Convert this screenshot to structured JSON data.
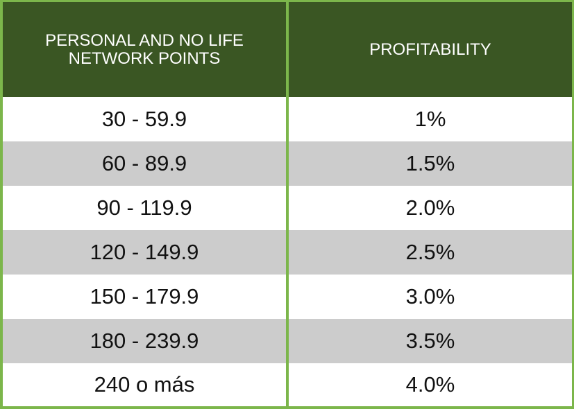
{
  "header": {
    "col1": "PERSONAL AND NO LIFE NETWORK POINTS",
    "col2": "PROFITABILITY"
  },
  "rows": [
    {
      "points": "30 - 59.9",
      "profitability": "1%"
    },
    {
      "points": "60 - 89.9",
      "profitability": "1.5%"
    },
    {
      "points": "90 - 119.9",
      "profitability": "2.0%"
    },
    {
      "points": "120 - 149.9",
      "profitability": "2.5%"
    },
    {
      "points": "150 - 179.9",
      "profitability": "3.0%"
    },
    {
      "points": "180 - 239.9",
      "profitability": "3.5%"
    },
    {
      "points": "240 o más",
      "profitability": "4.0%"
    }
  ],
  "colors": {
    "header_bg": "#3a5623",
    "border": "#7cb64b",
    "alt_row": "#cccccc"
  }
}
